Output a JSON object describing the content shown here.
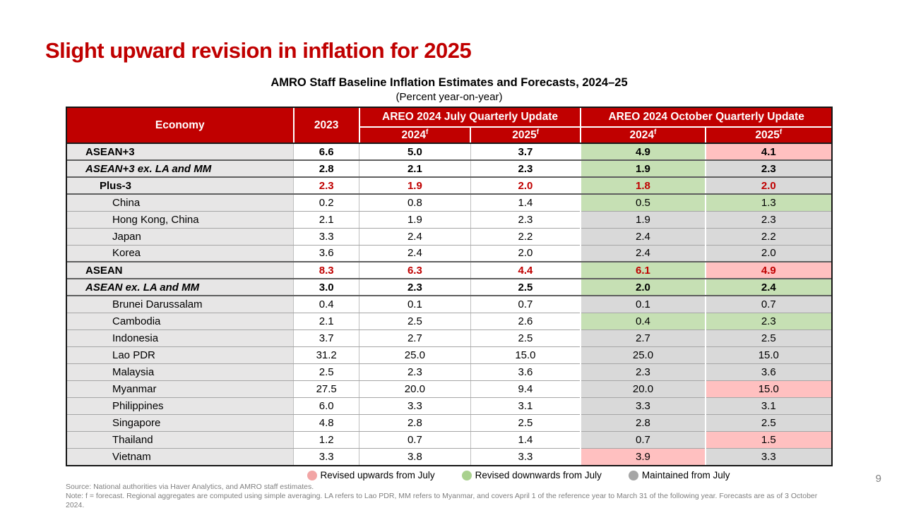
{
  "page": {
    "title": "Slight upward revision in inflation for 2025",
    "page_number": "9"
  },
  "table": {
    "title": "AMRO Staff Baseline Inflation Estimates and Forecasts, 2024–25",
    "subtitle": "(Percent year-on-year)",
    "forecast_flag": "f",
    "header": {
      "economy": "Economy",
      "year_2023": "2023",
      "july_group": "AREO 2024 July Quarterly Update",
      "october_group": "AREO 2024 October Quarterly Update",
      "sub_2024": "2024",
      "sub_2025": "2025"
    },
    "rows": [
      {
        "name": "ASEAN+3",
        "indent": 1,
        "bold": true,
        "italic": false,
        "red_values": false,
        "section_end": true,
        "values": [
          "6.6",
          "5.0",
          "3.7",
          "4.9",
          "4.1"
        ],
        "oct24": "revised_down",
        "oct25": "revised_up"
      },
      {
        "name": "ASEAN+3 ex. LA and MM",
        "indent": 1,
        "bold": true,
        "italic": true,
        "red_values": false,
        "section_end": true,
        "values": [
          "2.8",
          "2.1",
          "2.3",
          "1.9",
          "2.3"
        ],
        "oct24": "revised_down",
        "oct25": "maintained"
      },
      {
        "name": "Plus-3",
        "indent": 2,
        "bold": true,
        "italic": false,
        "red_values": true,
        "section_end": true,
        "values": [
          "2.3",
          "1.9",
          "2.0",
          "1.8",
          "2.0"
        ],
        "oct24": "revised_down",
        "oct25": "maintained"
      },
      {
        "name": "China",
        "indent": 3,
        "bold": false,
        "italic": false,
        "red_values": false,
        "section_end": false,
        "values": [
          "0.2",
          "0.8",
          "1.4",
          "0.5",
          "1.3"
        ],
        "oct24": "revised_down",
        "oct25": "revised_down"
      },
      {
        "name": "Hong Kong, China",
        "indent": 3,
        "bold": false,
        "italic": false,
        "red_values": false,
        "section_end": false,
        "values": [
          "2.1",
          "1.9",
          "2.3",
          "1.9",
          "2.3"
        ],
        "oct24": "maintained",
        "oct25": "maintained"
      },
      {
        "name": "Japan",
        "indent": 3,
        "bold": false,
        "italic": false,
        "red_values": false,
        "section_end": false,
        "values": [
          "3.3",
          "2.4",
          "2.2",
          "2.4",
          "2.2"
        ],
        "oct24": "maintained",
        "oct25": "maintained"
      },
      {
        "name": "Korea",
        "indent": 3,
        "bold": false,
        "italic": false,
        "red_values": false,
        "section_end": true,
        "values": [
          "3.6",
          "2.4",
          "2.0",
          "2.4",
          "2.0"
        ],
        "oct24": "maintained",
        "oct25": "maintained"
      },
      {
        "name": "ASEAN",
        "indent": 1,
        "bold": true,
        "italic": false,
        "red_values": true,
        "section_end": true,
        "values": [
          "8.3",
          "6.3",
          "4.4",
          "6.1",
          "4.9"
        ],
        "oct24": "revised_down",
        "oct25": "revised_up"
      },
      {
        "name": "ASEAN ex. LA and MM",
        "indent": 1,
        "bold": true,
        "italic": true,
        "red_values": false,
        "section_end": true,
        "values": [
          "3.0",
          "2.3",
          "2.5",
          "2.0",
          "2.4"
        ],
        "oct24": "revised_down",
        "oct25": "revised_down"
      },
      {
        "name": "Brunei Darussalam",
        "indent": 3,
        "bold": false,
        "italic": false,
        "red_values": false,
        "section_end": false,
        "values": [
          "0.4",
          "0.1",
          "0.7",
          "0.1",
          "0.7"
        ],
        "oct24": "maintained",
        "oct25": "maintained"
      },
      {
        "name": "Cambodia",
        "indent": 3,
        "bold": false,
        "italic": false,
        "red_values": false,
        "section_end": false,
        "values": [
          "2.1",
          "2.5",
          "2.6",
          "0.4",
          "2.3"
        ],
        "oct24": "revised_down",
        "oct25": "revised_down"
      },
      {
        "name": "Indonesia",
        "indent": 3,
        "bold": false,
        "italic": false,
        "red_values": false,
        "section_end": false,
        "values": [
          "3.7",
          "2.7",
          "2.5",
          "2.7",
          "2.5"
        ],
        "oct24": "maintained",
        "oct25": "maintained"
      },
      {
        "name": "Lao PDR",
        "indent": 3,
        "bold": false,
        "italic": false,
        "red_values": false,
        "section_end": false,
        "values": [
          "31.2",
          "25.0",
          "15.0",
          "25.0",
          "15.0"
        ],
        "oct24": "maintained",
        "oct25": "maintained"
      },
      {
        "name": "Malaysia",
        "indent": 3,
        "bold": false,
        "italic": false,
        "red_values": false,
        "section_end": false,
        "values": [
          "2.5",
          "2.3",
          "3.6",
          "2.3",
          "3.6"
        ],
        "oct24": "maintained",
        "oct25": "maintained"
      },
      {
        "name": "Myanmar",
        "indent": 3,
        "bold": false,
        "italic": false,
        "red_values": false,
        "section_end": false,
        "values": [
          "27.5",
          "20.0",
          "9.4",
          "20.0",
          "15.0"
        ],
        "oct24": "maintained",
        "oct25": "revised_up"
      },
      {
        "name": "Philippines",
        "indent": 3,
        "bold": false,
        "italic": false,
        "red_values": false,
        "section_end": false,
        "values": [
          "6.0",
          "3.3",
          "3.1",
          "3.3",
          "3.1"
        ],
        "oct24": "maintained",
        "oct25": "maintained"
      },
      {
        "name": "Singapore",
        "indent": 3,
        "bold": false,
        "italic": false,
        "red_values": false,
        "section_end": false,
        "values": [
          "4.8",
          "2.8",
          "2.5",
          "2.8",
          "2.5"
        ],
        "oct24": "maintained",
        "oct25": "maintained"
      },
      {
        "name": "Thailand",
        "indent": 3,
        "bold": false,
        "italic": false,
        "red_values": false,
        "section_end": false,
        "values": [
          "1.2",
          "0.7",
          "1.4",
          "0.7",
          "1.5"
        ],
        "oct24": "maintained",
        "oct25": "revised_up"
      },
      {
        "name": "Vietnam",
        "indent": 3,
        "bold": false,
        "italic": false,
        "red_values": false,
        "section_end": false,
        "values": [
          "3.3",
          "3.8",
          "3.3",
          "3.9",
          "3.3"
        ],
        "oct24": "revised_up",
        "oct25": "maintained"
      }
    ]
  },
  "legend": {
    "items": [
      {
        "label": "Revised upwards from July",
        "dot_color": "#F2A5A5"
      },
      {
        "label": "Revised downwards from July",
        "dot_color": "#A9D18E"
      },
      {
        "label": "Maintained from July",
        "dot_color": "#A6A6A6"
      }
    ]
  },
  "footer": {
    "source": "Source: National authorities via Haver Analytics, and AMRO staff estimates.",
    "note": "Note: f = forecast. Regional aggregates are computed using simple averaging. LA refers to Lao PDR, MM refers to Myanmar, and covers April 1 of the reference year to March 31 of the following year. Forecasts are as of 3 October 2024."
  },
  "colors": {
    "revised_up": "#FFC0C0",
    "revised_down": "#C6E0B4",
    "maintained": "#D9D9D9",
    "header_red": "#C00000",
    "economy_column": "#E7E6E6"
  }
}
